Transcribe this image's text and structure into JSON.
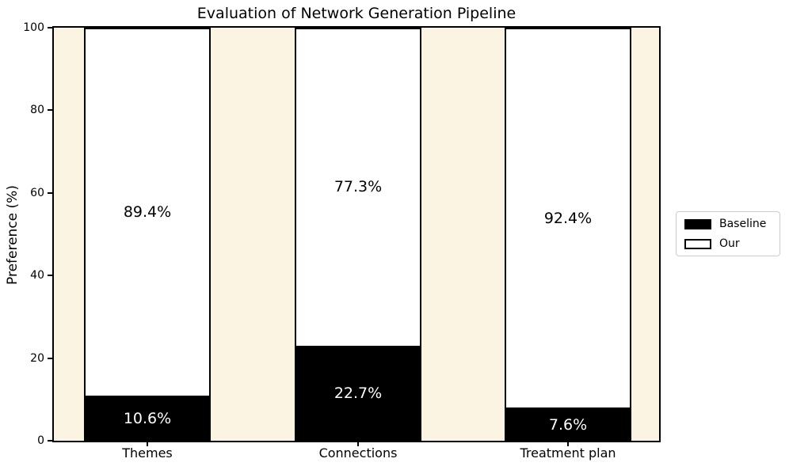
{
  "chart_data": {
    "type": "bar",
    "stacked": true,
    "title": "Evaluation of Network Generation Pipeline",
    "ylabel": "Preference (%)",
    "xlabel": "",
    "categories": [
      "Themes",
      "Connections",
      "Treatment plan"
    ],
    "series": [
      {
        "name": "Baseline",
        "color": "#000000",
        "text_color": "#ffffff",
        "values": [
          10.6,
          22.7,
          7.6
        ],
        "labels": [
          "10.6%",
          "22.7%",
          "7.6%"
        ]
      },
      {
        "name": "Our",
        "color": "#ffffff",
        "text_color": "#000000",
        "values": [
          89.4,
          77.3,
          92.4
        ],
        "labels": [
          "89.4%",
          "77.3%",
          "92.4%"
        ]
      }
    ],
    "ylim": [
      0,
      100
    ],
    "yticks": [
      "0",
      "20",
      "40",
      "60",
      "80",
      "100"
    ],
    "grid": false,
    "legend_position": "right-outside",
    "plot_background": "#FCF4E3",
    "bar_edge_color": "#000000",
    "spine_color": "#000000"
  }
}
